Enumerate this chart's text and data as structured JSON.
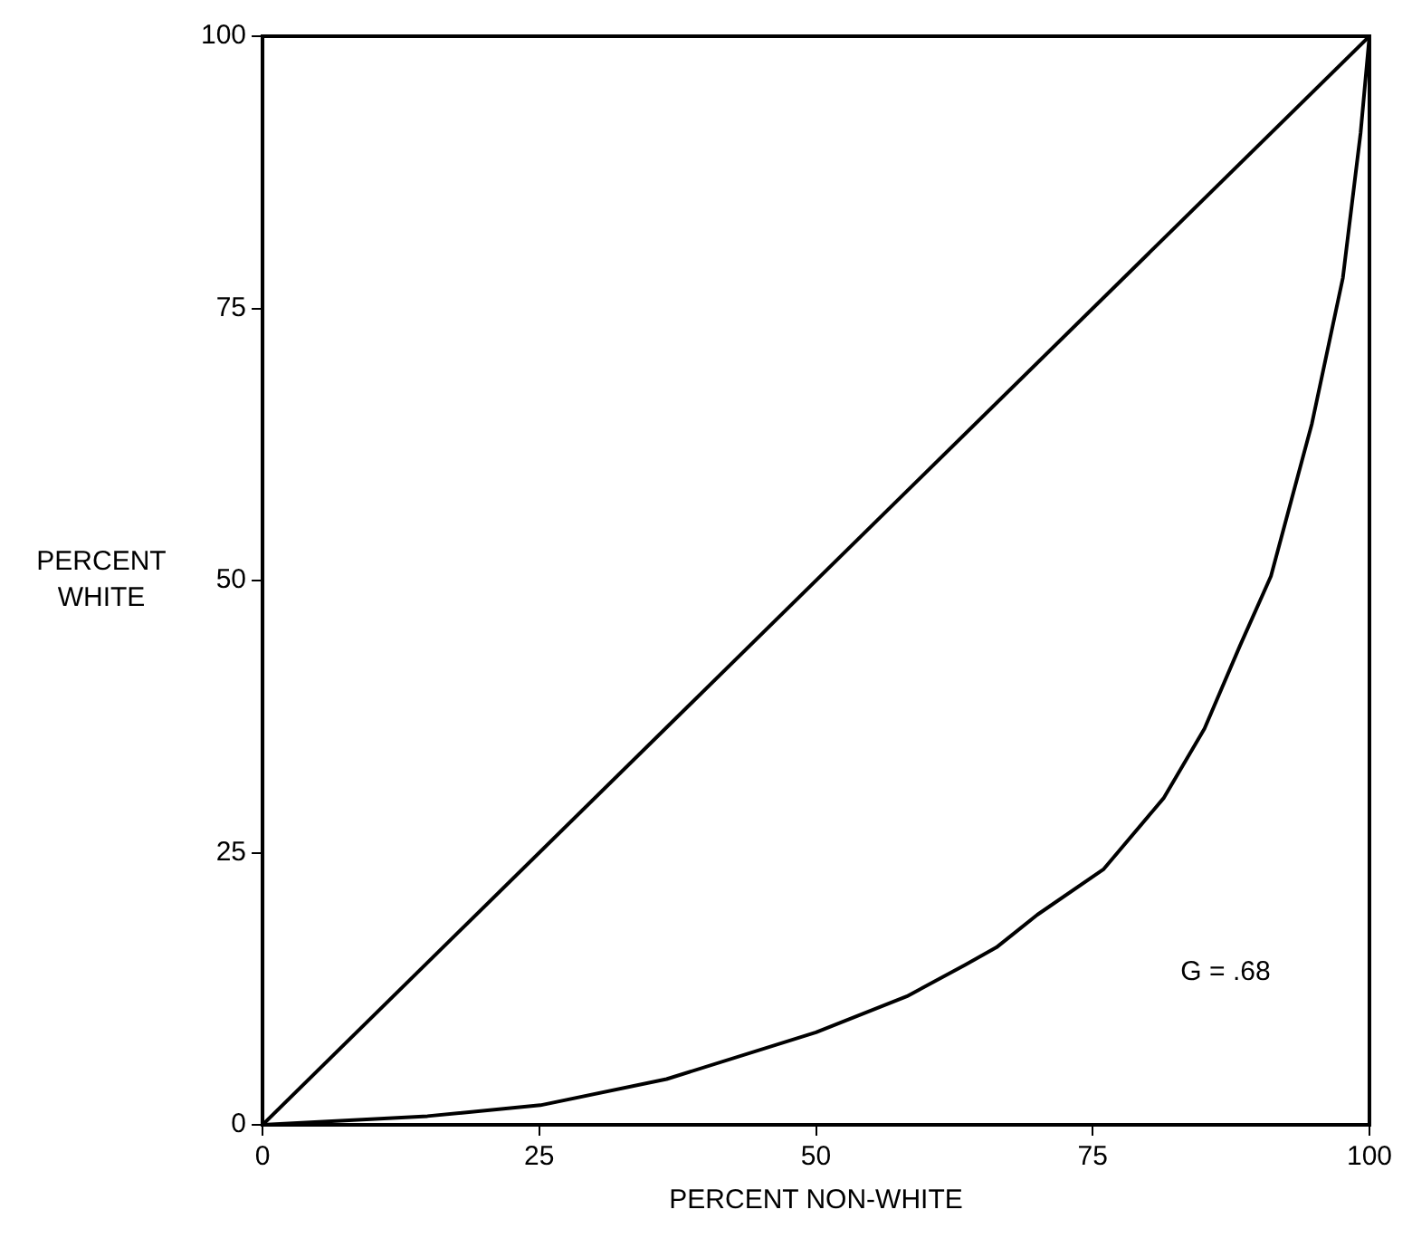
{
  "chart_data": {
    "type": "line",
    "xlabel": "PERCENT NON-WHITE",
    "ylabel": "PERCENT WHITE",
    "xlim": [
      0,
      100
    ],
    "ylim": [
      0,
      100
    ],
    "xticks": [
      0,
      25,
      50,
      75,
      100
    ],
    "yticks": [
      0,
      25,
      50,
      75,
      100
    ],
    "grid": false,
    "legend": false,
    "marker": "none",
    "line_style": "solid",
    "series": [
      {
        "color": "#000000",
        "x": [
          0,
          100
        ],
        "values": [
          0,
          100
        ]
      },
      {
        "color": "#000000",
        "x": [
          0,
          14.9,
          25.1,
          36.5,
          50,
          58.2,
          63.5,
          66.3,
          70,
          76,
          81.4,
          85.1,
          88.3,
          91.1,
          94.8,
          97.6,
          99.2,
          100
        ],
        "values": [
          0,
          0.8,
          1.8,
          4.2,
          8.5,
          11.8,
          14.7,
          16.3,
          19.3,
          23.5,
          30,
          36.4,
          44,
          50.4,
          64.4,
          77.8,
          91.1,
          100
        ]
      }
    ],
    "annotations": [
      "G = .68"
    ]
  }
}
